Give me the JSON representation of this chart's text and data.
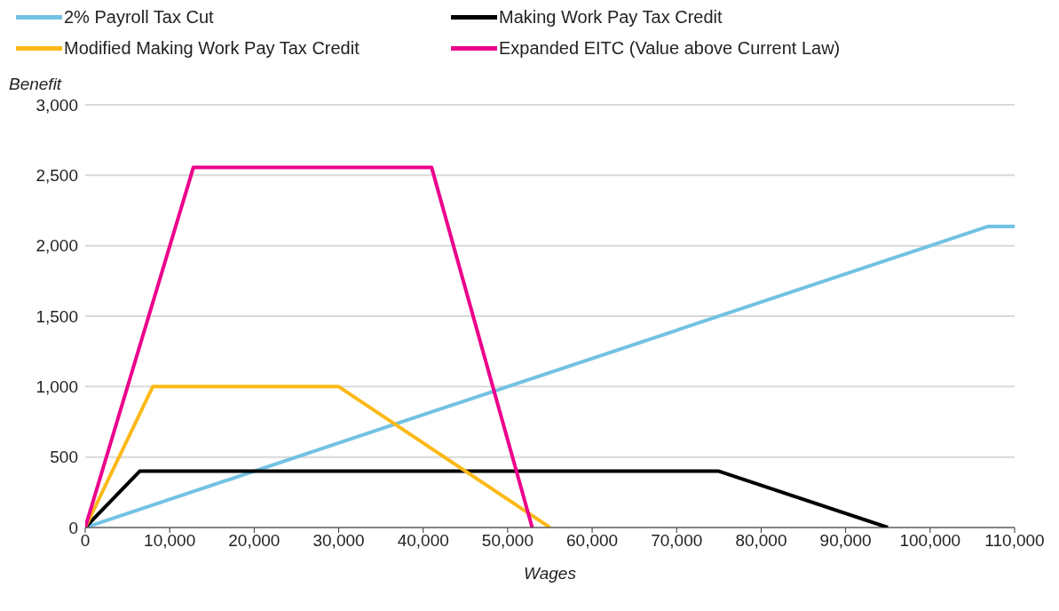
{
  "chart_data": {
    "type": "line",
    "xlabel": "Wages",
    "ylabel": "Benefit",
    "xlim": [
      0,
      110000
    ],
    "xticks": [
      {
        "value": 0,
        "label": "0"
      },
      {
        "value": 10000,
        "label": "10,000"
      },
      {
        "value": 20000,
        "label": "20,000"
      },
      {
        "value": 30000,
        "label": "30,000"
      },
      {
        "value": 40000,
        "label": "40,000"
      },
      {
        "value": 50000,
        "label": "50,000"
      },
      {
        "value": 60000,
        "label": "60,000"
      },
      {
        "value": 70000,
        "label": "70,000"
      },
      {
        "value": 80000,
        "label": "80,000"
      },
      {
        "value": 90000,
        "label": "90,000"
      },
      {
        "value": 100000,
        "label": "100,000"
      },
      {
        "value": 110000,
        "label": "110,000"
      }
    ],
    "ylim": [
      0,
      3000
    ],
    "yticks": [
      {
        "value": 0,
        "label": "0"
      },
      {
        "value": 500,
        "label": "500"
      },
      {
        "value": 1000,
        "label": "1,000"
      },
      {
        "value": 1500,
        "label": "1,500"
      },
      {
        "value": 2000,
        "label": "2,000"
      },
      {
        "value": 2500,
        "label": "2,500"
      },
      {
        "value": 3000,
        "label": "3,000"
      }
    ],
    "grid": "y",
    "legend": "top",
    "marker": "none",
    "line_style": "solid",
    "series": [
      {
        "name": "2% Payroll Tax Cut",
        "color": "#73c2e2",
        "x": [
          0,
          106800,
          110000
        ],
        "values": [
          0,
          2136,
          2136
        ]
      },
      {
        "name": "Making Work Pay Tax Credit",
        "color": "#000000",
        "x": [
          0,
          6450,
          75000,
          95000
        ],
        "values": [
          0,
          400,
          400,
          0
        ]
      },
      {
        "name": "Modified Making Work Pay Tax Credit",
        "color": "#fcb918",
        "x": [
          0,
          8000,
          30000,
          55000
        ],
        "values": [
          0,
          1000,
          1000,
          0
        ]
      },
      {
        "name": "Expanded EITC (Value above Current Law)",
        "color": "#ec008b",
        "x": [
          0,
          12800,
          41000,
          52900
        ],
        "values": [
          0,
          2555,
          2555,
          0
        ]
      }
    ]
  }
}
